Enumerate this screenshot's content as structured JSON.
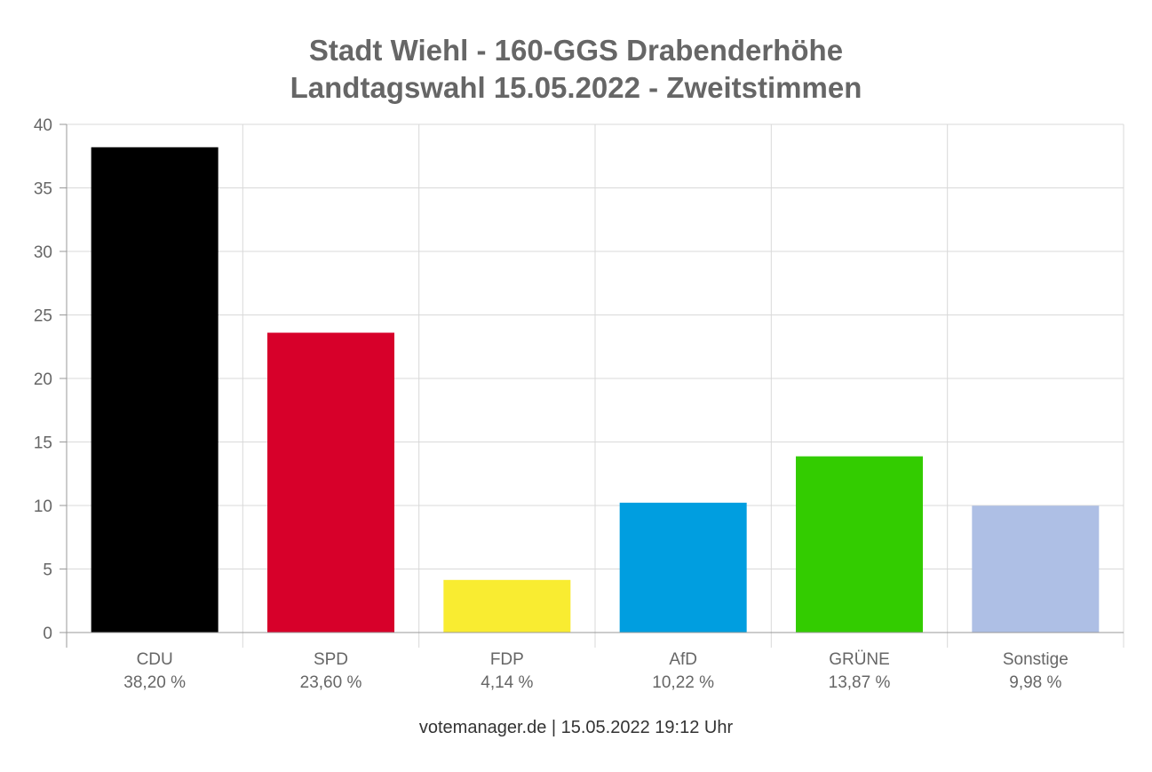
{
  "chart_data": {
    "type": "bar",
    "title": "Stadt Wiehl - 160-GGS Drabenderhöhe",
    "subtitle": "Landtagswahl 15.05.2022  - Zweitstimmen",
    "categories": [
      "CDU",
      "SPD",
      "FDP",
      "AfD",
      "GRÜNE",
      "Sonstige"
    ],
    "values": [
      38.2,
      23.6,
      4.14,
      10.22,
      13.87,
      9.98
    ],
    "value_labels": [
      "38,20 %",
      "23,60 %",
      "4,14 %",
      "10,22 %",
      "13,87 %",
      "9,98 %"
    ],
    "colors": [
      "#000000",
      "#d7002a",
      "#f9ec31",
      "#009ee0",
      "#33cc00",
      "#aebfe5"
    ],
    "ylim": [
      0,
      40
    ],
    "yticks": [
      0,
      5,
      10,
      15,
      20,
      25,
      30,
      35,
      40
    ],
    "grid": true,
    "xlabel": "",
    "ylabel": ""
  },
  "footer": {
    "credit": "votemanager.de | 15.05.2022 19:12 Uhr"
  }
}
